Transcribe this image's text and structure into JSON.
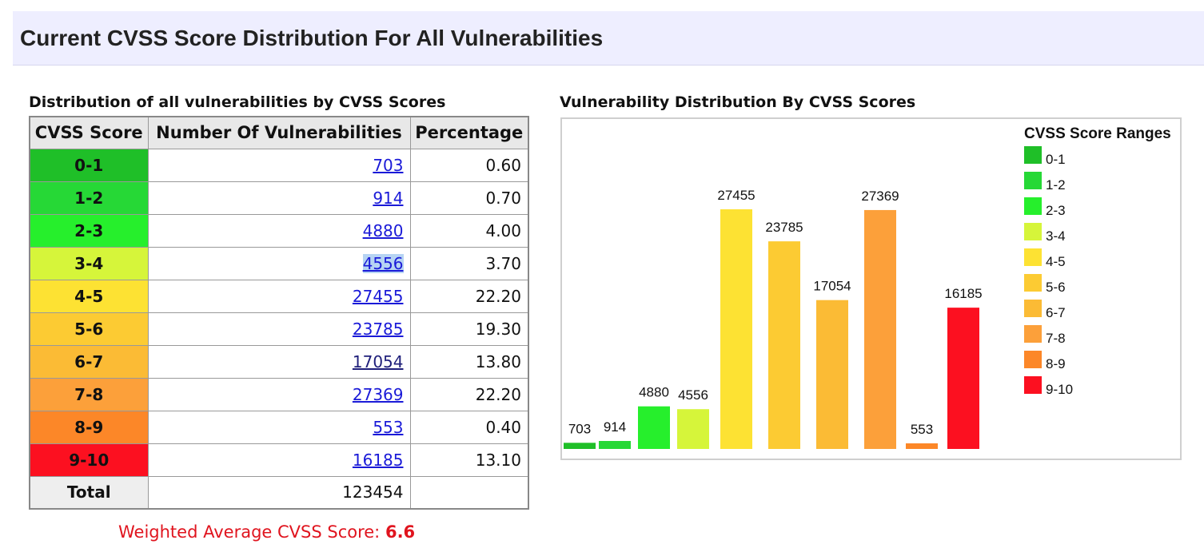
{
  "header": {
    "title": "Current CVSS Score Distribution For All Vulnerabilities"
  },
  "table": {
    "title": "Distribution of all vulnerabilities by CVSS Scores",
    "columns": [
      "CVSS Score",
      "Number Of Vulnerabilities",
      "Percentage"
    ],
    "rows": [
      {
        "score": "0-1",
        "count": "703",
        "percentage": "0.60",
        "color": "#1fbf28"
      },
      {
        "score": "1-2",
        "count": "914",
        "percentage": "0.70",
        "color": "#26d836"
      },
      {
        "score": "2-3",
        "count": "4880",
        "percentage": "4.00",
        "color": "#26ef2c"
      },
      {
        "score": "3-4",
        "count": "4556",
        "percentage": "3.70",
        "color": "#d6f53a"
      },
      {
        "score": "4-5",
        "count": "27455",
        "percentage": "22.20",
        "color": "#fde233"
      },
      {
        "score": "5-6",
        "count": "23785",
        "percentage": "19.30",
        "color": "#fccb33"
      },
      {
        "score": "6-7",
        "count": "17054",
        "percentage": "13.80",
        "color": "#fbbb35"
      },
      {
        "score": "7-8",
        "count": "27369",
        "percentage": "22.20",
        "color": "#fca03a"
      },
      {
        "score": "8-9",
        "count": "553",
        "percentage": "0.40",
        "color": "#fc8728"
      },
      {
        "score": "9-10",
        "count": "16185",
        "percentage": "13.10",
        "color": "#fc1020"
      }
    ],
    "total_label": "Total",
    "total_value": "123454",
    "weighted_label": "Weighted Average CVSS Score:",
    "weighted_value": "6.6"
  },
  "chart_data": {
    "type": "bar",
    "title": "Vulnerability Distribution By CVSS Scores",
    "legend_title": "CVSS Score Ranges",
    "legend_position": "right",
    "categories": [
      "0-1",
      "1-2",
      "2-3",
      "3-4",
      "4-5",
      "5-6",
      "6-7",
      "7-8",
      "8-9",
      "9-10"
    ],
    "values": [
      703,
      914,
      4880,
      4556,
      27455,
      23785,
      17054,
      27369,
      553,
      16185
    ],
    "colors": [
      "#1fbf28",
      "#26d836",
      "#26ef2c",
      "#d6f53a",
      "#fde233",
      "#fccb33",
      "#fbbb35",
      "#fca03a",
      "#fc8728",
      "#fc1020"
    ],
    "ylim": [
      0,
      27455
    ],
    "grid": false
  }
}
